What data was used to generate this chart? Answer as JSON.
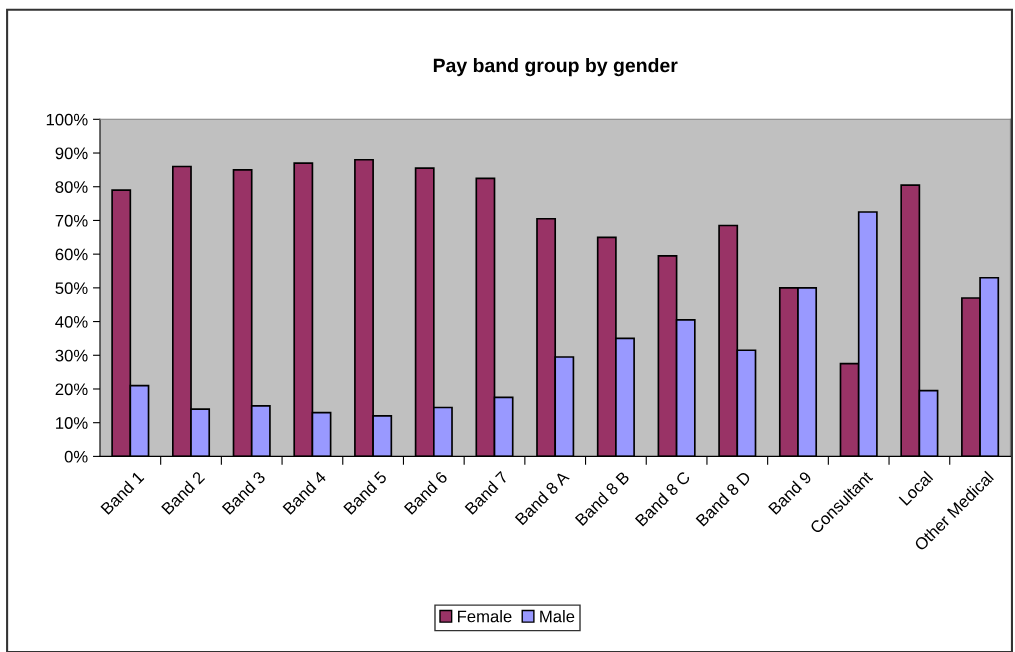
{
  "chart_data": {
    "type": "bar",
    "title": "Pay band group by gender",
    "categories": [
      "Band 1",
      "Band 2",
      "Band 3",
      "Band 4",
      "Band 5",
      "Band 6",
      "Band 7",
      "Band 8 A",
      "Band 8 B",
      "Band 8 C",
      "Band 8 D",
      "Band 9",
      "Consultant",
      "Local",
      "Other Medical"
    ],
    "series": [
      {
        "name": "Female",
        "color": "#993366",
        "values": [
          79,
          86,
          85,
          87,
          88,
          85.5,
          82.5,
          70.5,
          65,
          59.5,
          68.5,
          50,
          27.5,
          80.5,
          47
        ]
      },
      {
        "name": "Male",
        "color": "#9999ff",
        "values": [
          21,
          14,
          15,
          13,
          12,
          14.5,
          17.5,
          29.5,
          35,
          40.5,
          31.5,
          50,
          72.5,
          19.5,
          53
        ]
      }
    ],
    "ylim": [
      0,
      100
    ],
    "yticks": [
      {
        "value": 0,
        "label": "0%"
      },
      {
        "value": 10,
        "label": "10%"
      },
      {
        "value": 20,
        "label": "20%"
      },
      {
        "value": 30,
        "label": "30%"
      },
      {
        "value": 40,
        "label": "40%"
      },
      {
        "value": 50,
        "label": "50%"
      },
      {
        "value": 60,
        "label": "60%"
      },
      {
        "value": 70,
        "label": "70%"
      },
      {
        "value": 80,
        "label": "80%"
      },
      {
        "value": 90,
        "label": "90%"
      },
      {
        "value": 100,
        "label": "100%"
      }
    ],
    "grid": false,
    "legend": "bottom"
  }
}
